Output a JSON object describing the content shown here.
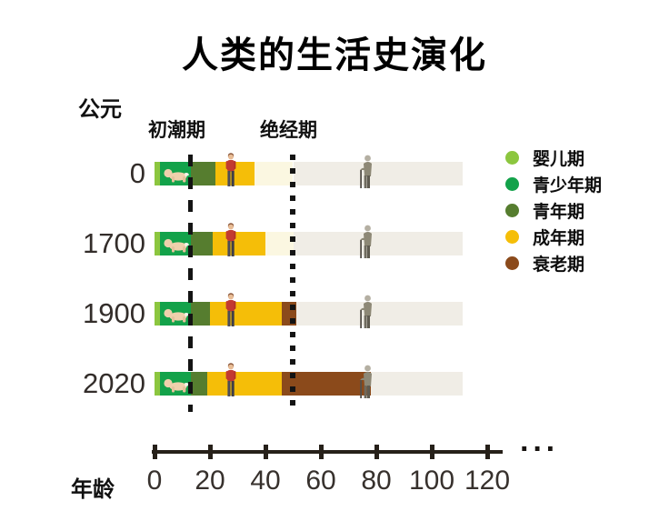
{
  "title": "人类的生活史演化",
  "labels": {
    "era": "公元",
    "menarche": "初潮期",
    "menopause": "绝经期",
    "age_axis": "年龄",
    "axis_continuation": "···"
  },
  "colors": {
    "infant": "#8CC63F",
    "juvenile": "#13A24A",
    "youth": "#567D2F",
    "adult": "#F5BE08",
    "senescence": "#8B4A1B",
    "potential_adult": "#FBF7E1",
    "potential_lifespan": "#F0EDE6",
    "reference_line": "#141414",
    "axis": "#262019"
  },
  "chart_data": {
    "type": "bar",
    "orientation": "horizontal",
    "title": "人类的生活史演化",
    "xlabel": "年龄",
    "xlim": [
      0,
      130
    ],
    "x_ticks": [
      0,
      20,
      40,
      60,
      80,
      100,
      120
    ],
    "axis_continues_beyond": 120,
    "reference_lines": [
      {
        "label": "初潮期",
        "age": 13,
        "style": "dashed"
      },
      {
        "label": "绝经期",
        "age": 50,
        "style": "dotted"
      }
    ],
    "stages": [
      {
        "key": "infant",
        "label": "婴儿期",
        "color": "#8CC63F"
      },
      {
        "key": "juvenile",
        "label": "青少年期",
        "color": "#13A24A"
      },
      {
        "key": "youth",
        "label": "青年期",
        "color": "#567D2F"
      },
      {
        "key": "adult",
        "label": "成年期",
        "color": "#F5BE08"
      },
      {
        "key": "senescence",
        "label": "衰老期",
        "color": "#8B4A1B"
      }
    ],
    "rows": [
      {
        "year": "0",
        "segments": [
          {
            "stage": "infant",
            "from": 0,
            "to": 2
          },
          {
            "stage": "juvenile",
            "from": 2,
            "to": 13
          },
          {
            "stage": "youth",
            "from": 13,
            "to": 22
          },
          {
            "stage": "adult",
            "from": 22,
            "to": 36
          },
          {
            "stage": "potential_adult",
            "from": 36,
            "to": 50
          },
          {
            "stage": "potential_lifespan",
            "from": 50,
            "to": 111
          }
        ]
      },
      {
        "year": "1700",
        "segments": [
          {
            "stage": "infant",
            "from": 0,
            "to": 2
          },
          {
            "stage": "juvenile",
            "from": 2,
            "to": 13
          },
          {
            "stage": "youth",
            "from": 13,
            "to": 21
          },
          {
            "stage": "adult",
            "from": 21,
            "to": 40
          },
          {
            "stage": "potential_adult",
            "from": 40,
            "to": 50
          },
          {
            "stage": "potential_lifespan",
            "from": 50,
            "to": 111
          }
        ]
      },
      {
        "year": "1900",
        "segments": [
          {
            "stage": "infant",
            "from": 0,
            "to": 2
          },
          {
            "stage": "juvenile",
            "from": 2,
            "to": 13
          },
          {
            "stage": "youth",
            "from": 13,
            "to": 20
          },
          {
            "stage": "adult",
            "from": 20,
            "to": 46
          },
          {
            "stage": "senescence",
            "from": 46,
            "to": 51
          },
          {
            "stage": "potential_lifespan",
            "from": 51,
            "to": 111
          }
        ]
      },
      {
        "year": "2020",
        "segments": [
          {
            "stage": "infant",
            "from": 0,
            "to": 2
          },
          {
            "stage": "juvenile",
            "from": 2,
            "to": 13
          },
          {
            "stage": "youth",
            "from": 13,
            "to": 19
          },
          {
            "stage": "adult",
            "from": 19,
            "to": 46
          },
          {
            "stage": "senescence",
            "from": 46,
            "to": 78
          },
          {
            "stage": "potential_lifespan",
            "from": 78,
            "to": 111
          }
        ]
      }
    ],
    "icons_per_row": [
      {
        "name": "baby-icon",
        "age": 8
      },
      {
        "name": "adult-icon",
        "age": 28
      },
      {
        "name": "elder-icon",
        "age": 76
      }
    ]
  },
  "legend": {
    "items": [
      {
        "label": "婴儿期",
        "color": "#8CC63F"
      },
      {
        "label": "青少年期",
        "color": "#13A24A"
      },
      {
        "label": "青年期",
        "color": "#567D2F"
      },
      {
        "label": "成年期",
        "color": "#F5BE08"
      },
      {
        "label": "衰老期",
        "color": "#8B4A1B"
      }
    ]
  }
}
